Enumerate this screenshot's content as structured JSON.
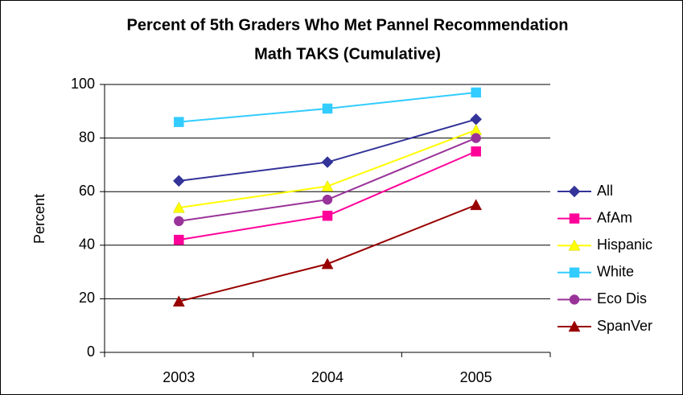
{
  "chart_data": {
    "type": "line",
    "title": "Percent of 5th Graders Who Met Pannel Recommendation",
    "subtitle": "Math TAKS (Cumulative)",
    "y_label": "Percent",
    "categories": [
      "2003",
      "2004",
      "2005"
    ],
    "series": [
      {
        "name": "All",
        "color": "#333399",
        "marker": "diamond",
        "values": [
          64,
          71,
          87
        ]
      },
      {
        "name": "AfAm",
        "color": "#ff0099",
        "marker": "square",
        "values": [
          42,
          51,
          75
        ]
      },
      {
        "name": "Hispanic",
        "color": "#ffff00",
        "marker": "triangle",
        "values": [
          54,
          62,
          83
        ]
      },
      {
        "name": "White",
        "color": "#33ccff",
        "marker": "square",
        "values": [
          86,
          91,
          97
        ]
      },
      {
        "name": "Eco Dis",
        "color": "#993399",
        "marker": "circle",
        "values": [
          49,
          57,
          80
        ]
      },
      {
        "name": "SpanVer",
        "color": "#990000",
        "marker": "triangle",
        "values": [
          19,
          33,
          55
        ]
      }
    ],
    "ylim": [
      0,
      100
    ],
    "yticks": [
      0,
      20,
      40,
      60,
      80,
      100
    ],
    "grid": true,
    "legend": "right"
  }
}
